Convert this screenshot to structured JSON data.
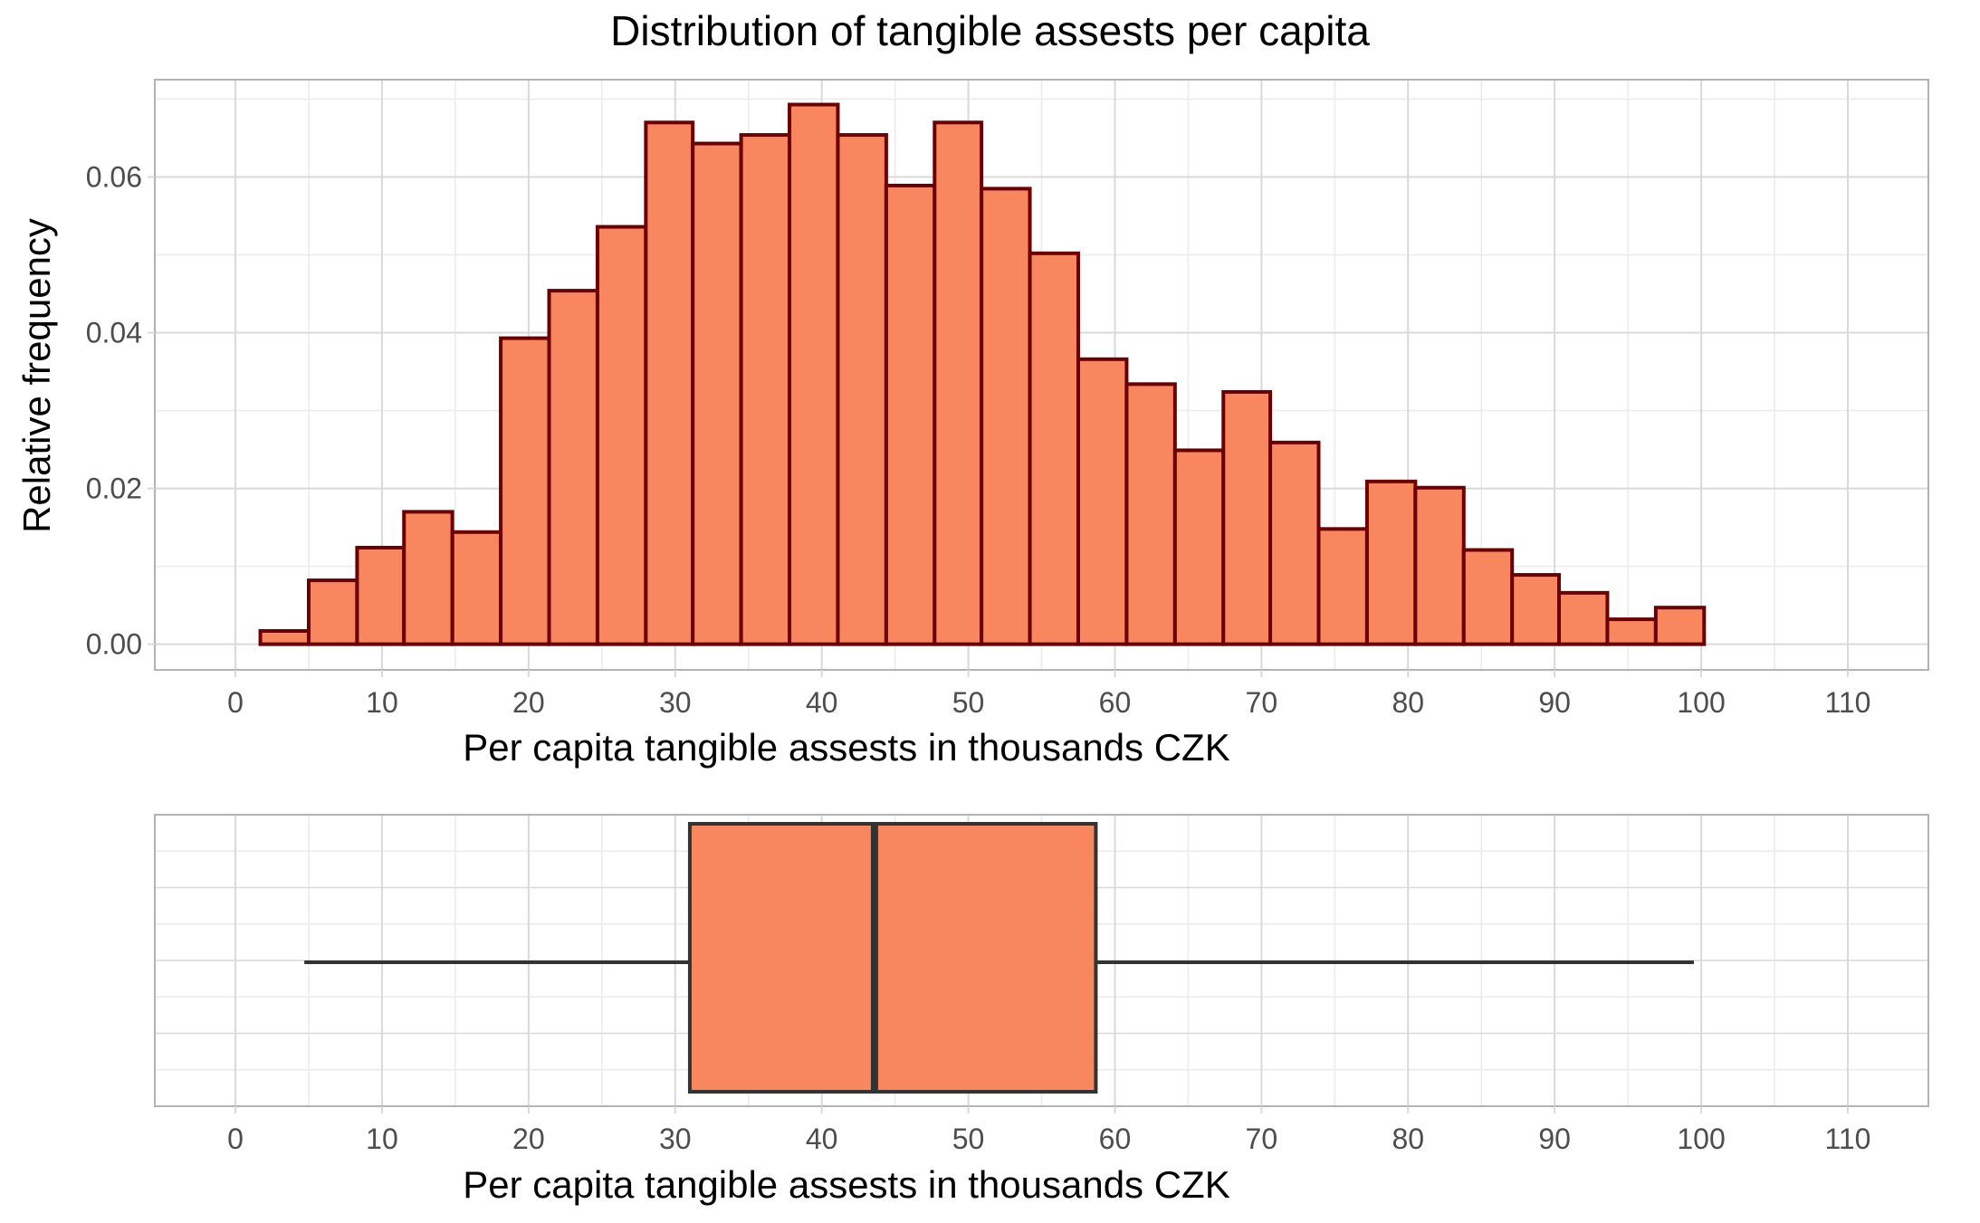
{
  "chart_data": {
    "title": "Distribution of tangible assests per capita",
    "colors": {
      "fill": "#F8865E",
      "hist_outline": "#6B0000",
      "box_outline": "#333333",
      "grid_major": "#D9D9D9",
      "grid_minor": "#EBEBEB",
      "panel_border": "#B3B3B3",
      "tick_label": "#4D4D4D"
    },
    "panels": [
      {
        "type": "bar",
        "subtype": "histogram",
        "xlabel": "Per capita tangible assests in thousands CZK",
        "ylabel": "Relative frequency",
        "xlim": [
          -5.5,
          115.5
        ],
        "ylim": [
          -0.0033,
          0.0725
        ],
        "xticks": [
          0,
          10,
          20,
          30,
          40,
          50,
          60,
          70,
          80,
          90,
          100,
          110
        ],
        "yticks": [
          0.0,
          0.02,
          0.04,
          0.06
        ],
        "ytick_labels": [
          "0.00",
          "0.02",
          "0.04",
          "0.06"
        ],
        "grid": true,
        "bins": [
          {
            "x0": 1.7,
            "x1": 5.0,
            "value": 0.0017
          },
          {
            "x0": 5.0,
            "x1": 8.3,
            "value": 0.0082
          },
          {
            "x0": 8.3,
            "x1": 11.5,
            "value": 0.0124
          },
          {
            "x0": 11.5,
            "x1": 14.8,
            "value": 0.017
          },
          {
            "x0": 14.8,
            "x1": 18.1,
            "value": 0.0144
          },
          {
            "x0": 18.1,
            "x1": 21.4,
            "value": 0.0393
          },
          {
            "x0": 21.4,
            "x1": 24.7,
            "value": 0.0454
          },
          {
            "x0": 24.7,
            "x1": 28.0,
            "value": 0.0536
          },
          {
            "x0": 28.0,
            "x1": 31.2,
            "value": 0.067
          },
          {
            "x0": 31.2,
            "x1": 34.5,
            "value": 0.0643
          },
          {
            "x0": 34.5,
            "x1": 37.8,
            "value": 0.0654
          },
          {
            "x0": 37.8,
            "x1": 41.1,
            "value": 0.0693
          },
          {
            "x0": 41.1,
            "x1": 44.4,
            "value": 0.0654
          },
          {
            "x0": 44.4,
            "x1": 47.7,
            "value": 0.0589
          },
          {
            "x0": 47.7,
            "x1": 50.9,
            "value": 0.067
          },
          {
            "x0": 50.9,
            "x1": 54.2,
            "value": 0.0585
          },
          {
            "x0": 54.2,
            "x1": 57.5,
            "value": 0.0502
          },
          {
            "x0": 57.5,
            "x1": 60.8,
            "value": 0.0366
          },
          {
            "x0": 60.8,
            "x1": 64.1,
            "value": 0.0334
          },
          {
            "x0": 64.1,
            "x1": 67.4,
            "value": 0.0249
          },
          {
            "x0": 67.4,
            "x1": 70.6,
            "value": 0.0324
          },
          {
            "x0": 70.6,
            "x1": 73.9,
            "value": 0.0259
          },
          {
            "x0": 73.9,
            "x1": 77.2,
            "value": 0.0148
          },
          {
            "x0": 77.2,
            "x1": 80.5,
            "value": 0.0209
          },
          {
            "x0": 80.5,
            "x1": 83.8,
            "value": 0.0201
          },
          {
            "x0": 83.8,
            "x1": 87.1,
            "value": 0.0121
          },
          {
            "x0": 87.1,
            "x1": 90.3,
            "value": 0.0089
          },
          {
            "x0": 90.3,
            "x1": 93.6,
            "value": 0.0066
          },
          {
            "x0": 93.6,
            "x1": 96.9,
            "value": 0.0032
          },
          {
            "x0": 96.9,
            "x1": 100.2,
            "value": 0.0047
          }
        ]
      },
      {
        "type": "boxplot",
        "xlabel": "Per capita tangible assests in thousands CZK",
        "xlim": [
          -5.5,
          115.5
        ],
        "xticks": [
          0,
          10,
          20,
          30,
          40,
          50,
          60,
          70,
          80,
          90,
          100,
          110
        ],
        "grid": true,
        "box": {
          "whisker_low": 4.7,
          "q1": 31.0,
          "median": 43.6,
          "q3": 58.7,
          "whisker_high": 99.5
        }
      }
    ]
  }
}
